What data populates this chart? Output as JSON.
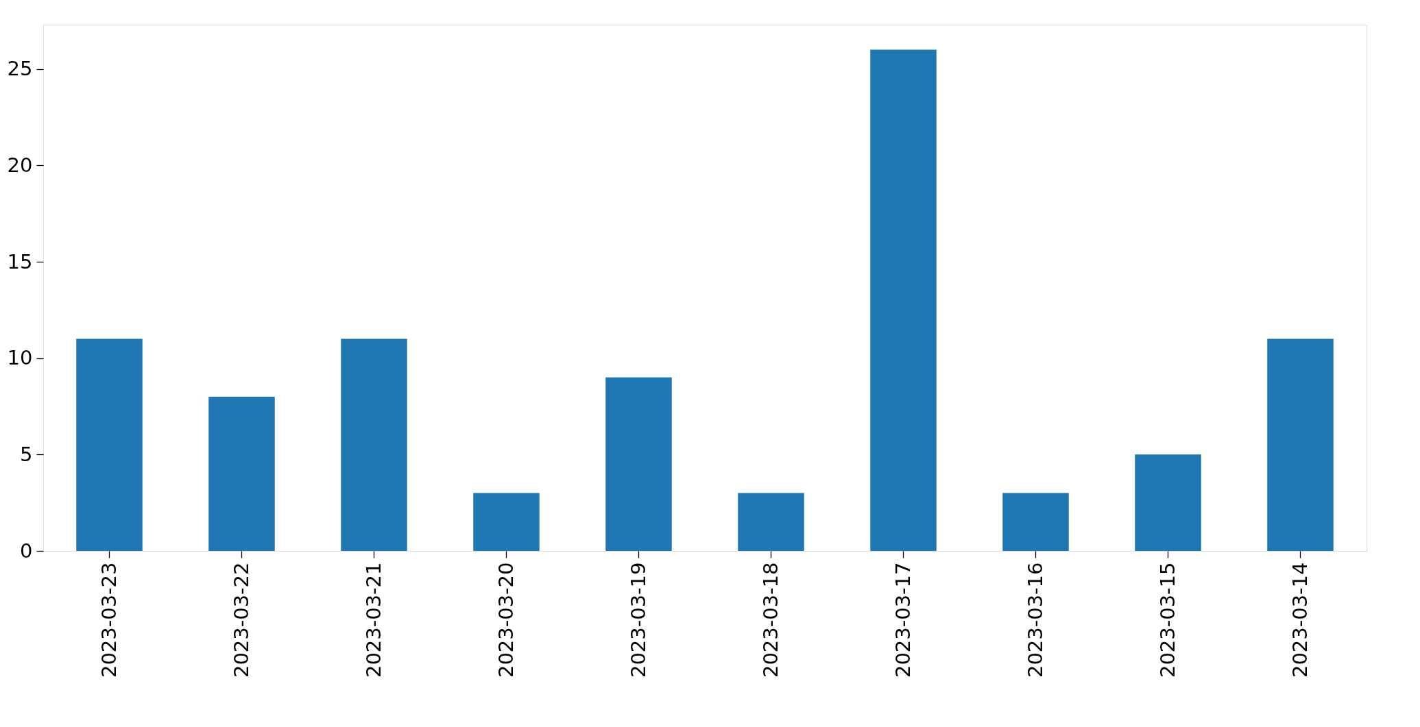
{
  "chart_data": {
    "type": "bar",
    "categories": [
      "2023-03-23",
      "2023-03-22",
      "2023-03-21",
      "2023-03-20",
      "2023-03-19",
      "2023-03-18",
      "2023-03-17",
      "2023-03-16",
      "2023-03-15",
      "2023-03-14"
    ],
    "values": [
      11,
      8,
      11,
      3,
      9,
      3,
      26,
      3,
      5,
      11
    ],
    "color": "#1f77b4",
    "ylim": [
      0,
      27.3
    ],
    "yticks": [
      0,
      5,
      10,
      15,
      20,
      25
    ],
    "grid": false
  }
}
